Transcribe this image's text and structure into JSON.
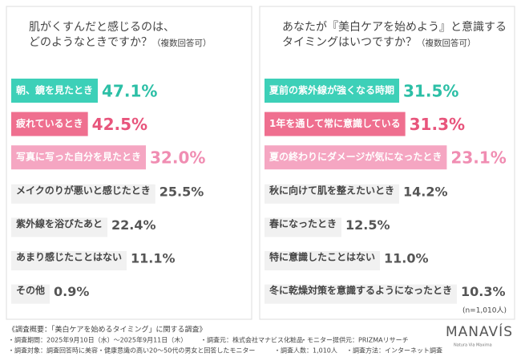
{
  "chart_data": [
    {
      "type": "bar",
      "title": [
        "肌がくすんだと感じるのは、",
        "どのようなときですか？"
      ],
      "subtitle": "（複数回答可）",
      "categories": [
        "朝、鏡を見たとき",
        "疲れているとき",
        "写真に写った自分を見たとき",
        "メイクのりが悪いと感じたとき",
        "紫外線を浴びたあと",
        "あまり感じたことはない",
        "その他"
      ],
      "values": [
        47.1,
        42.5,
        32.0,
        25.5,
        22.4,
        11.1,
        0.9
      ],
      "value_labels": [
        "47.1%",
        "42.5%",
        "32.0%",
        "25.5%",
        "22.4%",
        "11.1%",
        "0.9%"
      ],
      "colors": [
        "#3dd0b8",
        "#ef6f8f",
        "#f5a6c2",
        "#e2e2e2",
        "#e2e2e2",
        "#e2e2e2",
        "#e2e2e2"
      ]
    },
    {
      "type": "bar",
      "title": [
        "あなたが『美白ケアを始めよう』と意識する",
        "タイミングはいつですか？"
      ],
      "subtitle": "（複数回答可）",
      "categories": [
        "夏前の紫外線が強くなる時期",
        "1年を通して常に意識している",
        "夏の終わりにダメージが気になったとき",
        "秋に向けて肌を整えたいとき",
        "春になったとき",
        "特に意識したことはない",
        "冬に乾燥対策を意識するようになったとき"
      ],
      "values": [
        31.5,
        31.3,
        23.1,
        14.2,
        12.5,
        11.0,
        10.3
      ],
      "value_labels": [
        "31.5%",
        "31.3%",
        "23.1%",
        "14.2%",
        "12.5%",
        "11.0%",
        "10.3%"
      ],
      "colors": [
        "#3dd0b8",
        "#ef6f8f",
        "#f5a6c2",
        "#e2e2e2",
        "#e2e2e2",
        "#e2e2e2",
        "#e2e2e2"
      ],
      "note": "(n=1,010人)"
    }
  ],
  "footer": {
    "heading": "《調査概要：「美白ケアを始めるタイミング」に関する調査》",
    "items": [
      [
        "・調査期間：2025年9月10日（水）～2025年9月11日（木）",
        "・調査元：株式会社マナビス化粧品",
        "・モニター提供元：PRIZMAリサーチ"
      ],
      [
        "・調査対象：調査回答時に美容・健康意識の高い20～50代の男女と回答したモニター",
        "・調査人数：1,010人",
        "・調査方法：インターネット調査"
      ]
    ]
  },
  "logo": {
    "name": "MANAVÍS",
    "tagline": "Natura Via Maxima"
  }
}
